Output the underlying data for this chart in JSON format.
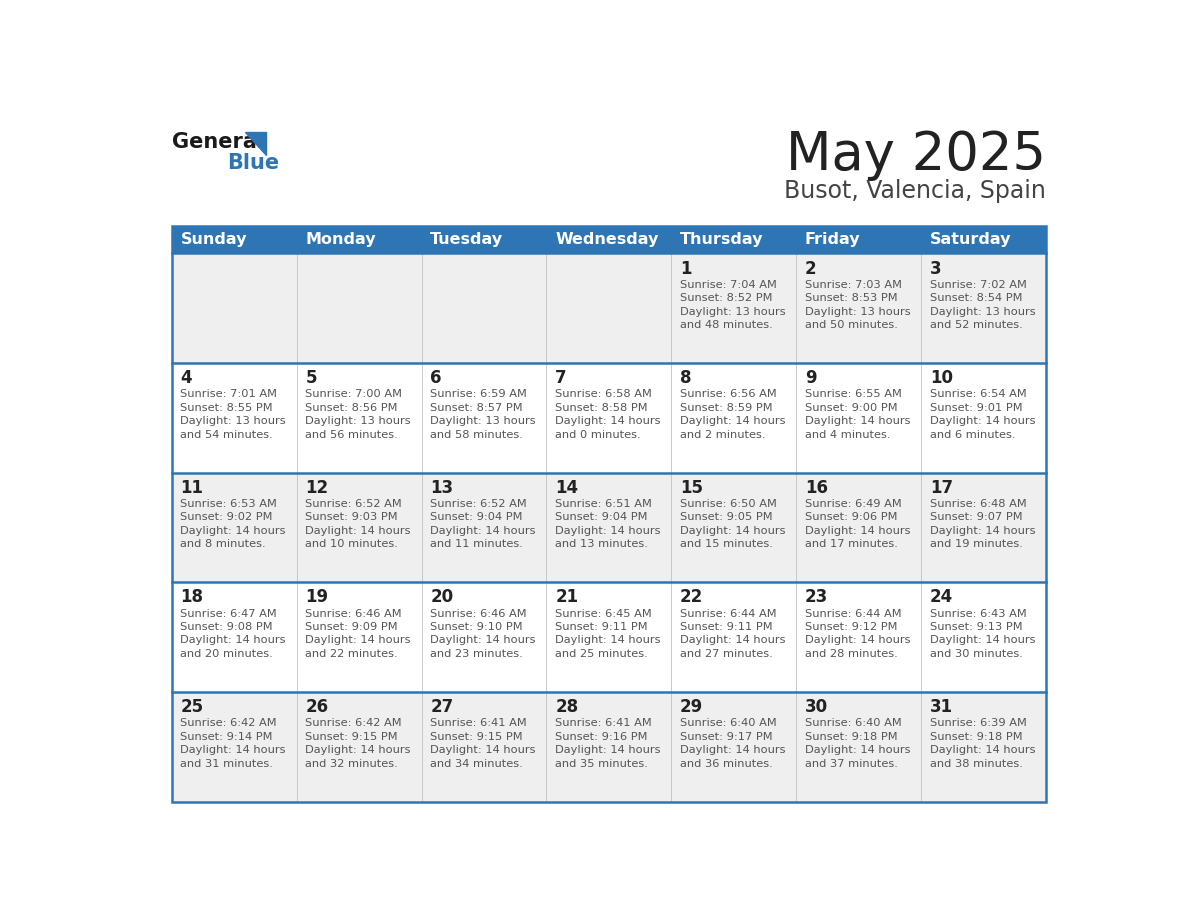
{
  "title": "May 2025",
  "subtitle": "Busot, Valencia, Spain",
  "header_color": "#2E75B6",
  "header_text_color": "#FFFFFF",
  "day_names": [
    "Sunday",
    "Monday",
    "Tuesday",
    "Wednesday",
    "Thursday",
    "Friday",
    "Saturday"
  ],
  "cell_bg_light": "#EFEFEF",
  "cell_bg_white": "#FFFFFF",
  "row_separator_color": "#2E75B6",
  "grid_color": "#C0C0C0",
  "title_color": "#222222",
  "subtitle_color": "#444444",
  "day_number_color": "#222222",
  "cell_text_color": "#555555",
  "calendar_data": [
    [
      null,
      null,
      null,
      null,
      {
        "day": 1,
        "sunrise": "7:04 AM",
        "sunset": "8:52 PM",
        "daylight": "13 hours and 48 minutes"
      },
      {
        "day": 2,
        "sunrise": "7:03 AM",
        "sunset": "8:53 PM",
        "daylight": "13 hours and 50 minutes"
      },
      {
        "day": 3,
        "sunrise": "7:02 AM",
        "sunset": "8:54 PM",
        "daylight": "13 hours and 52 minutes"
      }
    ],
    [
      {
        "day": 4,
        "sunrise": "7:01 AM",
        "sunset": "8:55 PM",
        "daylight": "13 hours and 54 minutes"
      },
      {
        "day": 5,
        "sunrise": "7:00 AM",
        "sunset": "8:56 PM",
        "daylight": "13 hours and 56 minutes"
      },
      {
        "day": 6,
        "sunrise": "6:59 AM",
        "sunset": "8:57 PM",
        "daylight": "13 hours and 58 minutes"
      },
      {
        "day": 7,
        "sunrise": "6:58 AM",
        "sunset": "8:58 PM",
        "daylight": "14 hours and 0 minutes"
      },
      {
        "day": 8,
        "sunrise": "6:56 AM",
        "sunset": "8:59 PM",
        "daylight": "14 hours and 2 minutes"
      },
      {
        "day": 9,
        "sunrise": "6:55 AM",
        "sunset": "9:00 PM",
        "daylight": "14 hours and 4 minutes"
      },
      {
        "day": 10,
        "sunrise": "6:54 AM",
        "sunset": "9:01 PM",
        "daylight": "14 hours and 6 minutes"
      }
    ],
    [
      {
        "day": 11,
        "sunrise": "6:53 AM",
        "sunset": "9:02 PM",
        "daylight": "14 hours and 8 minutes"
      },
      {
        "day": 12,
        "sunrise": "6:52 AM",
        "sunset": "9:03 PM",
        "daylight": "14 hours and 10 minutes"
      },
      {
        "day": 13,
        "sunrise": "6:52 AM",
        "sunset": "9:04 PM",
        "daylight": "14 hours and 11 minutes"
      },
      {
        "day": 14,
        "sunrise": "6:51 AM",
        "sunset": "9:04 PM",
        "daylight": "14 hours and 13 minutes"
      },
      {
        "day": 15,
        "sunrise": "6:50 AM",
        "sunset": "9:05 PM",
        "daylight": "14 hours and 15 minutes"
      },
      {
        "day": 16,
        "sunrise": "6:49 AM",
        "sunset": "9:06 PM",
        "daylight": "14 hours and 17 minutes"
      },
      {
        "day": 17,
        "sunrise": "6:48 AM",
        "sunset": "9:07 PM",
        "daylight": "14 hours and 19 minutes"
      }
    ],
    [
      {
        "day": 18,
        "sunrise": "6:47 AM",
        "sunset": "9:08 PM",
        "daylight": "14 hours and 20 minutes"
      },
      {
        "day": 19,
        "sunrise": "6:46 AM",
        "sunset": "9:09 PM",
        "daylight": "14 hours and 22 minutes"
      },
      {
        "day": 20,
        "sunrise": "6:46 AM",
        "sunset": "9:10 PM",
        "daylight": "14 hours and 23 minutes"
      },
      {
        "day": 21,
        "sunrise": "6:45 AM",
        "sunset": "9:11 PM",
        "daylight": "14 hours and 25 minutes"
      },
      {
        "day": 22,
        "sunrise": "6:44 AM",
        "sunset": "9:11 PM",
        "daylight": "14 hours and 27 minutes"
      },
      {
        "day": 23,
        "sunrise": "6:44 AM",
        "sunset": "9:12 PM",
        "daylight": "14 hours and 28 minutes"
      },
      {
        "day": 24,
        "sunrise": "6:43 AM",
        "sunset": "9:13 PM",
        "daylight": "14 hours and 30 minutes"
      }
    ],
    [
      {
        "day": 25,
        "sunrise": "6:42 AM",
        "sunset": "9:14 PM",
        "daylight": "14 hours and 31 minutes"
      },
      {
        "day": 26,
        "sunrise": "6:42 AM",
        "sunset": "9:15 PM",
        "daylight": "14 hours and 32 minutes"
      },
      {
        "day": 27,
        "sunrise": "6:41 AM",
        "sunset": "9:15 PM",
        "daylight": "14 hours and 34 minutes"
      },
      {
        "day": 28,
        "sunrise": "6:41 AM",
        "sunset": "9:16 PM",
        "daylight": "14 hours and 35 minutes"
      },
      {
        "day": 29,
        "sunrise": "6:40 AM",
        "sunset": "9:17 PM",
        "daylight": "14 hours and 36 minutes"
      },
      {
        "day": 30,
        "sunrise": "6:40 AM",
        "sunset": "9:18 PM",
        "daylight": "14 hours and 37 minutes"
      },
      {
        "day": 31,
        "sunrise": "6:39 AM",
        "sunset": "9:18 PM",
        "daylight": "14 hours and 38 minutes"
      }
    ]
  ]
}
